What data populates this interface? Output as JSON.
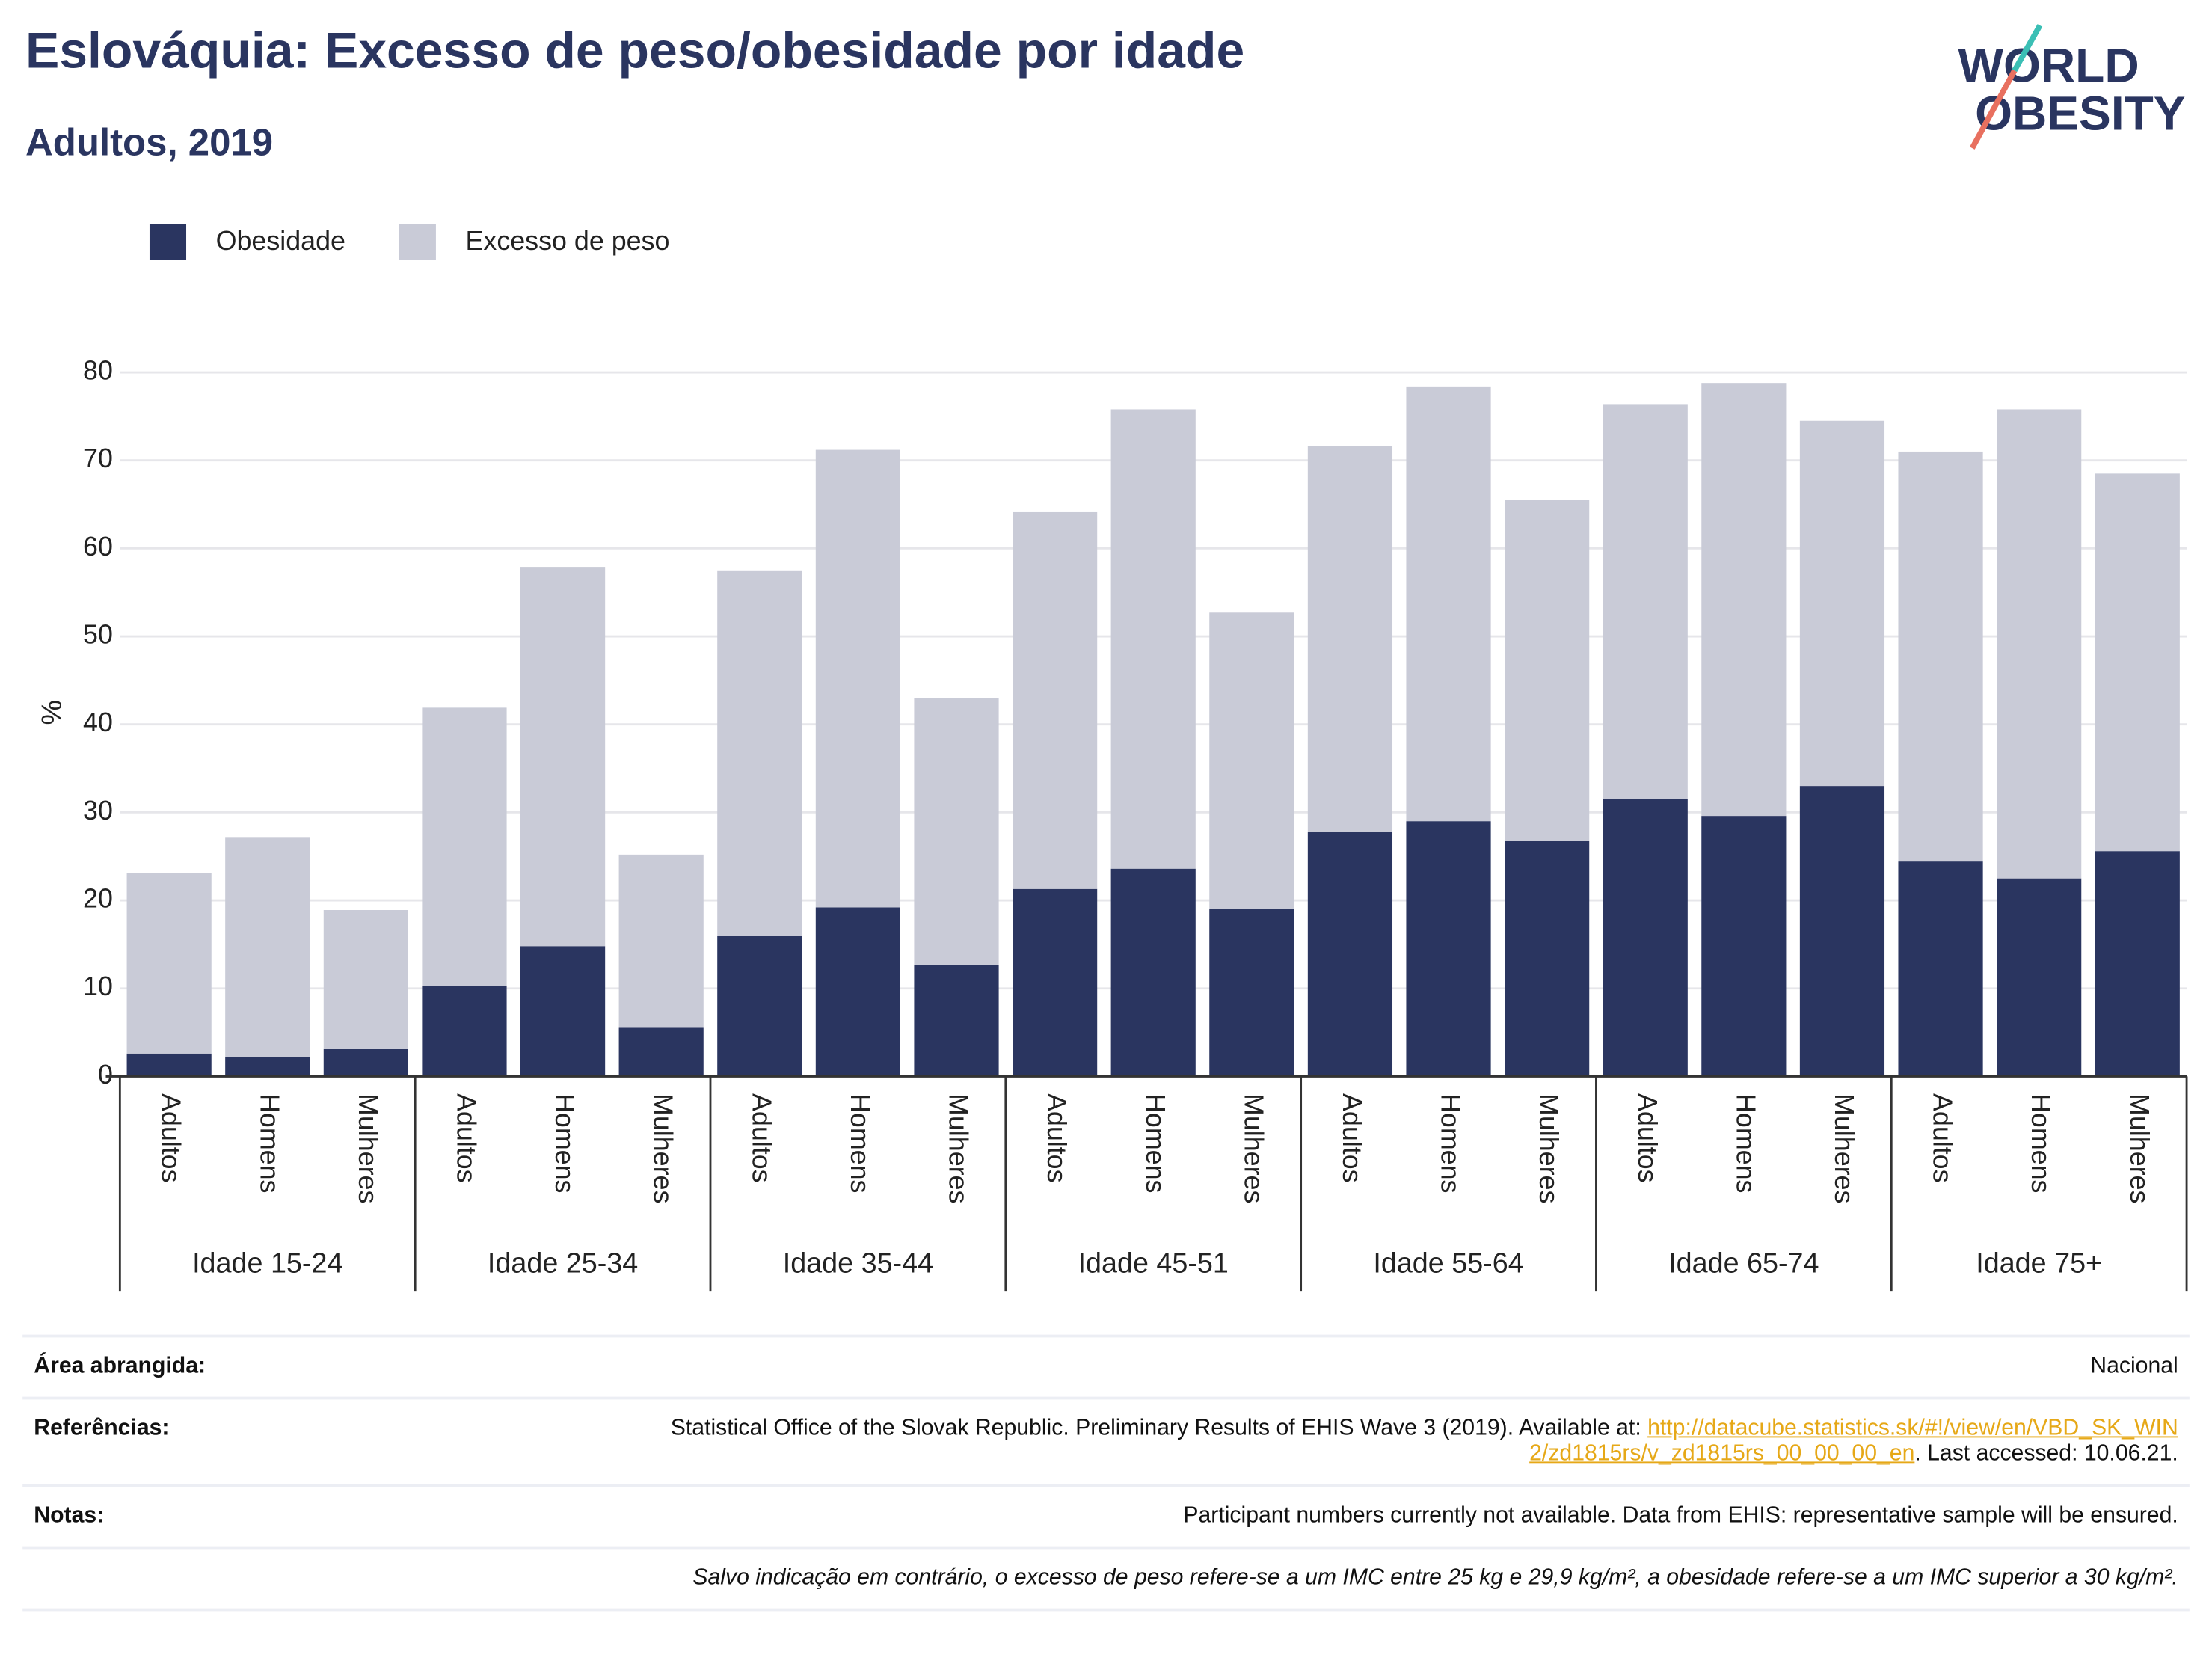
{
  "chart_data": {
    "type": "stacked_bar",
    "title": "Eslováquia: Excesso de peso/obesidade por idade",
    "subtitle": "Adultos, 2019",
    "y_label": "%",
    "groups": [
      "Idade 15-24",
      "Idade 25-34",
      "Idade 35-44",
      "Idade 45-51",
      "Idade 55-64",
      "Idade 65-74",
      "Idade 75+"
    ],
    "categories": [
      "Adultos",
      "Homens",
      "Mulheres",
      "Adultos",
      "Homens",
      "Mulheres",
      "Adultos",
      "Homens",
      "Mulheres",
      "Adultos",
      "Homens",
      "Mulheres",
      "Adultos",
      "Homens",
      "Mulheres",
      "Adultos",
      "Homens",
      "Mulheres",
      "Adultos",
      "Homens",
      "Mulheres"
    ],
    "series": [
      {
        "name": "Obesidade",
        "color": "#2a3560",
        "values": [
          2.6,
          2.2,
          3.1,
          10.3,
          14.8,
          5.6,
          16.0,
          19.2,
          12.7,
          21.3,
          23.6,
          19.0,
          27.8,
          29.0,
          26.8,
          31.5,
          29.6,
          33.0,
          24.5,
          22.5,
          25.6
        ]
      },
      {
        "name": "Excesso de peso",
        "color": "#c9cbd7",
        "values": [
          20.5,
          25.0,
          15.8,
          31.6,
          43.1,
          19.6,
          41.5,
          52.0,
          30.3,
          42.9,
          52.2,
          33.7,
          43.8,
          49.4,
          38.7,
          44.9,
          49.2,
          41.5,
          46.5,
          53.3,
          42.9
        ]
      }
    ],
    "ylim": [
      0,
      80
    ],
    "yticks": [
      0,
      10,
      20,
      30,
      40,
      50,
      60,
      70,
      80
    ],
    "grid": true,
    "legend": "top-left"
  },
  "logo": {
    "line1": "WORLD",
    "line2": "OBESITY"
  },
  "footer": [
    {
      "label": "Área abrangida:",
      "text": "Nacional"
    },
    {
      "label": "Referências:",
      "text": "Statistical Office of the Slovak Republic. Preliminary Results of EHIS Wave 3 (2019). Available at: ",
      "link": "http://datacube.statistics.sk/#!/view/en/VBD_SK_WIN2/zd1815rs/v_zd1815rs_00_00_00_en",
      "after": ". Last accessed: 10.06.21."
    },
    {
      "label": "Notas:",
      "text": "Participant numbers currently not available. Data from EHIS: representative sample will be ensured."
    },
    {
      "note": "Salvo indicação em contrário, o excesso de peso refere-se a um IMC entre 25 kg e 29,9 kg/m², a obesidade refere-se a um IMC superior a 30 kg/m²."
    }
  ]
}
